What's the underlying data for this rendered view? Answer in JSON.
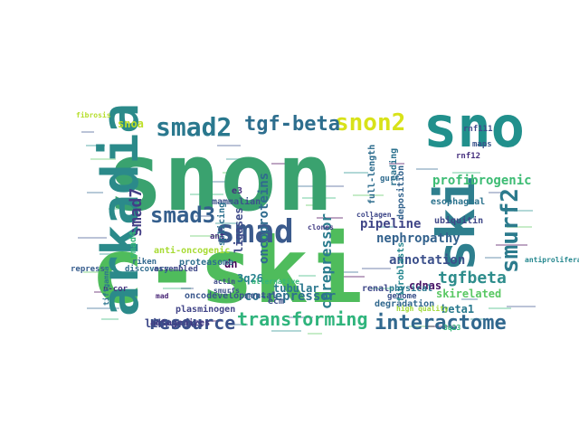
{
  "words": [
    {
      "text": "snon",
      "color": "#3aa26f"
    },
    {
      "text": "c-ski",
      "color": "#4fbc5c"
    },
    {
      "text": "sno",
      "color": "#21908c"
    },
    {
      "text": "arkadia",
      "color": "#2b8a8a"
    },
    {
      "text": "ski",
      "color": "#2e7f8e"
    },
    {
      "text": "smad",
      "color": "#3b5a8c"
    },
    {
      "text": "smad2",
      "color": "#2a788e"
    },
    {
      "text": "snon2",
      "color": "#d8e219"
    },
    {
      "text": "tgf-beta",
      "color": "#2d6e8e"
    },
    {
      "text": "smurf2",
      "color": "#2c7b8d"
    },
    {
      "text": "smad3",
      "color": "#355f8d"
    },
    {
      "text": "interactome",
      "color": "#31688e"
    },
    {
      "text": "transforming",
      "color": "#2fb47c"
    },
    {
      "text": "resource",
      "color": "#3b528b"
    },
    {
      "text": "tgfbeta",
      "color": "#2e8d8c"
    },
    {
      "text": "corepressor",
      "color": "#2b7c8e"
    },
    {
      "text": "smad7",
      "color": "#433e85"
    },
    {
      "text": "nephropathy",
      "color": "#33628d"
    },
    {
      "text": "oncoproteins",
      "color": "#2f6b8e"
    },
    {
      "text": "profibrogenic",
      "color": "#3dbc74"
    },
    {
      "text": "co-repressor",
      "color": "#2d718e"
    },
    {
      "text": "annotation",
      "color": "#3c508b"
    },
    {
      "text": "pipeline",
      "color": "#404688"
    },
    {
      "text": "libraries",
      "color": "#3e4989"
    },
    {
      "text": "cdnas",
      "color": "#471365"
    },
    {
      "text": "tubular",
      "color": "#2a778e"
    },
    {
      "text": "skirelated",
      "color": "#5ac864"
    },
    {
      "text": "esophageal",
      "color": "#2c738e"
    },
    {
      "text": "ubiquitin",
      "color": "#3f4788"
    },
    {
      "text": "smad4",
      "color": "#35b779"
    },
    {
      "text": "full-length",
      "color": "#2e6d8e"
    },
    {
      "text": "fibroblasts",
      "color": "#24868e"
    },
    {
      "text": "beta1",
      "color": "#29798e"
    },
    {
      "text": "ligases",
      "color": "#3e4a89"
    },
    {
      "text": "3q26",
      "color": "#27808e"
    },
    {
      "text": "dn",
      "color": "#440154"
    },
    {
      "text": "e3",
      "color": "#46307e"
    },
    {
      "text": "snoa",
      "color": "#bddf26"
    },
    {
      "text": "anti-oncogenic",
      "color": "#a8db34"
    },
    {
      "text": "mammalian",
      "color": "#3b518b"
    },
    {
      "text": "splicing",
      "color": "#2d708e"
    },
    {
      "text": "oncodevelopmental",
      "color": "#39568c"
    },
    {
      "text": "proteasome",
      "color": "#2e6f8e"
    },
    {
      "text": "plasminogen",
      "color": "#414487"
    },
    {
      "text": "ecm",
      "color": "#3b518b"
    },
    {
      "text": "antagonizes",
      "color": "#443983"
    },
    {
      "text": "proteomic",
      "color": "#3e4c8a"
    },
    {
      "text": "degradation",
      "color": "#31688e"
    },
    {
      "text": "physical",
      "color": "#2a768e"
    },
    {
      "text": "genome",
      "color": "#3b518b"
    },
    {
      "text": "renal",
      "color": "#3f4889"
    },
    {
      "text": "reading",
      "color": "#2c728e"
    },
    {
      "text": "deposition",
      "color": "#33638d"
    },
    {
      "text": "fibrosis",
      "color": "#b5de2b"
    },
    {
      "text": "repress",
      "color": "#365c8d"
    },
    {
      "text": "n-cor",
      "color": "#46337e"
    },
    {
      "text": "mad",
      "color": "#482576"
    },
    {
      "text": "actin",
      "color": "#3e4a89"
    },
    {
      "text": "smurfs",
      "color": "#3b528b"
    },
    {
      "text": "riken",
      "color": "#31688e"
    },
    {
      "text": "discovery",
      "color": "#2f6c8e"
    },
    {
      "text": "alternative",
      "color": "#35b779"
    },
    {
      "text": "assembled",
      "color": "#3f4788"
    },
    {
      "text": "ant",
      "color": "#46327e"
    },
    {
      "text": "clones",
      "color": "#433d84"
    },
    {
      "text": "maps",
      "color": "#3a538b"
    },
    {
      "text": "rnf111",
      "color": "#3e4a89"
    },
    {
      "text": "rnf12",
      "color": "#46307e"
    },
    {
      "text": "3q23",
      "color": "#35b779"
    },
    {
      "text": "gurf",
      "color": "#2f6b8e"
    },
    {
      "text": "collagen",
      "color": "#3f4889"
    },
    {
      "text": "antiproliferative",
      "color": "#24878e"
    },
    {
      "text": "tiftgamma",
      "color": "#2c738e"
    },
    {
      "text": "high quality",
      "color": "#a0da39"
    }
  ]
}
